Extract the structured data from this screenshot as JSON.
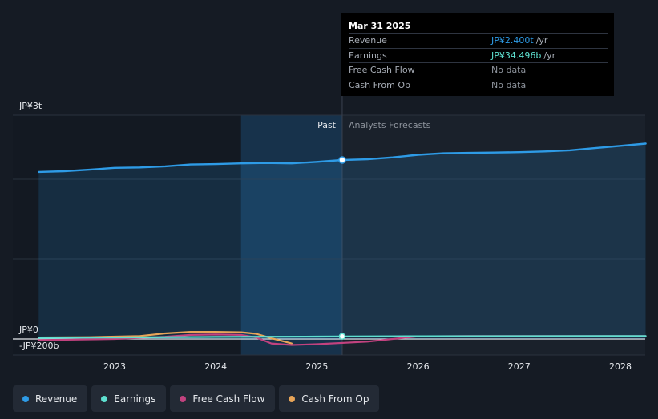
{
  "tooltip": {
    "date": "Mar 31 2025",
    "rows": [
      {
        "label": "Revenue",
        "value": "JP¥2.400t",
        "unit": "/yr",
        "color": "#2e9be6"
      },
      {
        "label": "Earnings",
        "value": "JP¥34.496b",
        "unit": "/yr",
        "color": "#5ee0d0"
      },
      {
        "label": "Free Cash Flow",
        "value": "No data",
        "unit": "",
        "color": "#8d939c"
      },
      {
        "label": "Cash From Op",
        "value": "No data",
        "unit": "",
        "color": "#8d939c"
      }
    ]
  },
  "legend": [
    {
      "label": "Revenue",
      "color": "#2e9be6"
    },
    {
      "label": "Earnings",
      "color": "#5ee0d0"
    },
    {
      "label": "Free Cash Flow",
      "color": "#c2427f"
    },
    {
      "label": "Cash From Op",
      "color": "#e8a558"
    }
  ],
  "chart_data": {
    "type": "line",
    "x_ticks": [
      2023,
      2024,
      2025,
      2026,
      2027,
      2028
    ],
    "y_tick_labels": {
      "top": "JP¥3t",
      "zero": "JP¥0",
      "bottom": "-JP¥200b"
    },
    "ylim": [
      -200,
      3000
    ],
    "y_unit": "JP¥ billions",
    "past_label": "Past",
    "forecast_label": "Analysts Forecasts",
    "forecast_start": 2025.25,
    "shaded_start": 2024.25,
    "series": [
      {
        "name": "Revenue",
        "color": "#2e9be6",
        "x": [
          2022.25,
          2022.5,
          2022.75,
          2023.0,
          2023.25,
          2023.5,
          2023.75,
          2024.0,
          2024.25,
          2024.5,
          2024.75,
          2025.0,
          2025.25,
          2025.5,
          2025.75,
          2026.0,
          2026.25,
          2026.5,
          2026.75,
          2027.0,
          2027.25,
          2027.5,
          2027.75,
          2028.0,
          2028.25
        ],
        "y": [
          2240,
          2250,
          2270,
          2295,
          2300,
          2315,
          2340,
          2345,
          2355,
          2360,
          2355,
          2375,
          2400,
          2410,
          2435,
          2470,
          2490,
          2495,
          2500,
          2505,
          2515,
          2530,
          2560,
          2590,
          2620
        ]
      },
      {
        "name": "Earnings",
        "color": "#5ee0d0",
        "x": [
          2022.25,
          2023.0,
          2024.0,
          2025.0,
          2025.25,
          2026.0,
          2027.0,
          2028.0,
          2028.25
        ],
        "y": [
          15,
          20,
          28,
          32,
          34.5,
          36,
          38,
          40,
          40
        ]
      },
      {
        "name": "Free Cash Flow",
        "color": "#c2427f",
        "x": [
          2022.25,
          2023.0,
          2023.5,
          2023.75,
          2024.0,
          2024.25,
          2024.4,
          2024.55,
          2024.75,
          2025.0,
          2025.5,
          2026.0,
          2026.5,
          2027.0,
          2028.0,
          2028.25
        ],
        "y": [
          -15,
          0,
          30,
          55,
          60,
          55,
          20,
          -60,
          -80,
          -70,
          -35,
          35,
          40,
          40,
          40,
          40
        ]
      },
      {
        "name": "Cash From Op",
        "color": "#e8a558",
        "x": [
          2022.25,
          2022.75,
          2023.25,
          2023.5,
          2023.75,
          2024.0,
          2024.25,
          2024.4,
          2024.55,
          2024.75
        ],
        "y": [
          20,
          25,
          40,
          75,
          95,
          95,
          90,
          70,
          10,
          -60
        ]
      }
    ]
  }
}
